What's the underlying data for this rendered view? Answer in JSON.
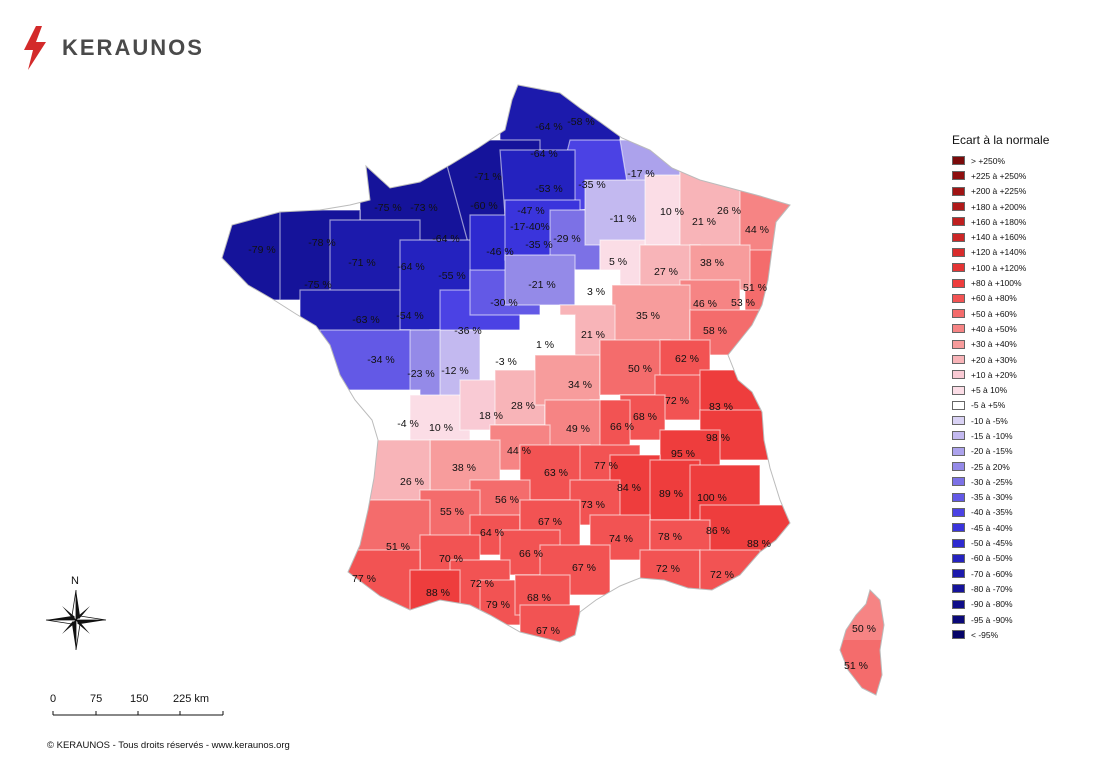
{
  "brand": {
    "name": "KERAUNOS",
    "icon": "lightning-icon",
    "color": "#d32a2a"
  },
  "legend": {
    "title": "Ecart à la normale",
    "items": [
      {
        "label": "> +250%",
        "color": "#7a0a0a"
      },
      {
        "label": "+225 à +250%",
        "color": "#8e0f0f"
      },
      {
        "label": "+200 à +225%",
        "color": "#a01414"
      },
      {
        "label": "+180 à +200%",
        "color": "#b01a1a"
      },
      {
        "label": "+160 à +180%",
        "color": "#bf1f1f"
      },
      {
        "label": "+140 à +160%",
        "color": "#cc2626"
      },
      {
        "label": "+120 à +140%",
        "color": "#d82c2c"
      },
      {
        "label": "+100 à +120%",
        "color": "#e43434"
      },
      {
        "label": "+80 à +100%",
        "color": "#ee3d3d"
      },
      {
        "label": "+60 à +80%",
        "color": "#f25353"
      },
      {
        "label": "+50 à +60%",
        "color": "#f46c6c"
      },
      {
        "label": "+40 à +50%",
        "color": "#f68484"
      },
      {
        "label": "+30 à +40%",
        "color": "#f79c9c"
      },
      {
        "label": "+20 à +30%",
        "color": "#f8b4b8"
      },
      {
        "label": "+10 à +20%",
        "color": "#f9cad4"
      },
      {
        "label": "+5 à 10%",
        "color": "#fbdde6"
      },
      {
        "label": "-5 à +5%",
        "color": "#ffffff"
      },
      {
        "label": "-10 à -5%",
        "color": "#d9d2f4"
      },
      {
        "label": "-15 à -10%",
        "color": "#c3b9f0"
      },
      {
        "label": "-20 à -15%",
        "color": "#aca2ec"
      },
      {
        "label": "-25 à 20%",
        "color": "#948ae8"
      },
      {
        "label": "-30 à -25%",
        "color": "#7c71e6"
      },
      {
        "label": "-35 à -30%",
        "color": "#6359e6"
      },
      {
        "label": "-40 à -35%",
        "color": "#4b42e4"
      },
      {
        "label": "-45 à -40%",
        "color": "#3a34dc"
      },
      {
        "label": "-50 à -45%",
        "color": "#2e2ad0"
      },
      {
        "label": "-60 à -50%",
        "color": "#2422bf"
      },
      {
        "label": "-70 à -60%",
        "color": "#1c1aac"
      },
      {
        "label": "-80 à -70%",
        "color": "#15139a"
      },
      {
        "label": "-90 à -80%",
        "color": "#0f0d88"
      },
      {
        "label": "-95 à -90%",
        "color": "#0a0878"
      },
      {
        "label": "< -95%",
        "color": "#060468"
      }
    ]
  },
  "map_labels": [
    {
      "text": "-64 %",
      "color": "#1c1aac"
    },
    {
      "text": "-58 %",
      "color": "#2422bf"
    },
    {
      "text": "-64 %",
      "color": "#1c1aac"
    },
    {
      "text": "-71 %",
      "color": "#15139a"
    },
    {
      "text": "-53 %",
      "color": "#2422bf"
    },
    {
      "text": "-35 %",
      "color": "#4b42e4"
    },
    {
      "text": "-17 %",
      "color": "#aca2ec"
    },
    {
      "text": "-75 %",
      "color": "#15139a"
    },
    {
      "text": "-73 %",
      "color": "#15139a"
    },
    {
      "text": "-60 %",
      "color": "#2422bf"
    },
    {
      "text": "-47 %",
      "color": "#2e2ad0"
    },
    {
      "text": "-17-40%",
      "color": "#3a34dc"
    },
    {
      "text": "-35 %",
      "color": "#4b42e4"
    },
    {
      "text": "-29 %",
      "color": "#7c71e6"
    },
    {
      "text": "-11 %",
      "color": "#c3b9f0"
    },
    {
      "text": "10 %",
      "color": "#fbdde6"
    },
    {
      "text": "21 %",
      "color": "#f8b4b8"
    },
    {
      "text": "26 %",
      "color": "#f8b4b8"
    },
    {
      "text": "44 %",
      "color": "#f68484"
    },
    {
      "text": "-79 %",
      "color": "#15139a"
    },
    {
      "text": "-78 %",
      "color": "#15139a"
    },
    {
      "text": "-64 %",
      "color": "#1c1aac"
    },
    {
      "text": "-46 %",
      "color": "#2e2ad0"
    },
    {
      "text": "-71 %",
      "color": "#15139a"
    },
    {
      "text": "-64 %",
      "color": "#1c1aac"
    },
    {
      "text": "-55 %",
      "color": "#2422bf"
    },
    {
      "text": "-21 %",
      "color": "#948ae8"
    },
    {
      "text": "5 %",
      "color": "#fbdde6"
    },
    {
      "text": "27 %",
      "color": "#f8b4b8"
    },
    {
      "text": "38 %",
      "color": "#f79c9c"
    },
    {
      "text": "-75 %",
      "color": "#15139a"
    },
    {
      "text": "3 %",
      "color": "#ffffff"
    },
    {
      "text": "51 %",
      "color": "#f46c6c"
    },
    {
      "text": "-30 %",
      "color": "#6359e6"
    },
    {
      "text": "46 %",
      "color": "#f68484"
    },
    {
      "text": "53 %",
      "color": "#f46c6c"
    },
    {
      "text": "-63 %",
      "color": "#1c1aac"
    },
    {
      "text": "-54 %",
      "color": "#2422bf"
    },
    {
      "text": "-36 %",
      "color": "#4b42e4"
    },
    {
      "text": "35 %",
      "color": "#f79c9c"
    },
    {
      "text": "21 %",
      "color": "#f8b4b8"
    },
    {
      "text": "58 %",
      "color": "#f46c6c"
    },
    {
      "text": "1 %",
      "color": "#ffffff"
    },
    {
      "text": "-34 %",
      "color": "#6359e6"
    },
    {
      "text": "-12 %",
      "color": "#c3b9f0"
    },
    {
      "text": "-3 %",
      "color": "#ffffff"
    },
    {
      "text": "62 %",
      "color": "#f25353"
    },
    {
      "text": "-23 %",
      "color": "#948ae8"
    },
    {
      "text": "50 %",
      "color": "#f46c6c"
    },
    {
      "text": "34 %",
      "color": "#f79c9c"
    },
    {
      "text": "72 %",
      "color": "#f25353"
    },
    {
      "text": "83 %",
      "color": "#ee3d3d"
    },
    {
      "text": "28 %",
      "color": "#f8b4b8"
    },
    {
      "text": "18 %",
      "color": "#f9cad4"
    },
    {
      "text": "68 %",
      "color": "#f25353"
    },
    {
      "text": "-4 %",
      "color": "#ffffff"
    },
    {
      "text": "10 %",
      "color": "#fbdde6"
    },
    {
      "text": "49 %",
      "color": "#f68484"
    },
    {
      "text": "66 %",
      "color": "#f25353"
    },
    {
      "text": "98 %",
      "color": "#ee3d3d"
    },
    {
      "text": "44 %",
      "color": "#f68484"
    },
    {
      "text": "95 %",
      "color": "#ee3d3d"
    },
    {
      "text": "38 %",
      "color": "#f79c9c"
    },
    {
      "text": "63 %",
      "color": "#f25353"
    },
    {
      "text": "77 %",
      "color": "#f25353"
    },
    {
      "text": "26 %",
      "color": "#f8b4b8"
    },
    {
      "text": "84 %",
      "color": "#ee3d3d"
    },
    {
      "text": "89 %",
      "color": "#ee3d3d"
    },
    {
      "text": "100 %",
      "color": "#ee3d3d"
    },
    {
      "text": "56 %",
      "color": "#f46c6c"
    },
    {
      "text": "73 %",
      "color": "#f25353"
    },
    {
      "text": "55 %",
      "color": "#f46c6c"
    },
    {
      "text": "64 %",
      "color": "#f25353"
    },
    {
      "text": "67 %",
      "color": "#f25353"
    },
    {
      "text": "86 %",
      "color": "#ee3d3d"
    },
    {
      "text": "51 %",
      "color": "#f46c6c"
    },
    {
      "text": "74 %",
      "color": "#f25353"
    },
    {
      "text": "78 %",
      "color": "#f25353"
    },
    {
      "text": "88 %",
      "color": "#ee3d3d"
    },
    {
      "text": "66 %",
      "color": "#f25353"
    },
    {
      "text": "70 %",
      "color": "#f25353"
    },
    {
      "text": "67 %",
      "color": "#f25353"
    },
    {
      "text": "72 %",
      "color": "#f25353"
    },
    {
      "text": "72 %",
      "color": "#f25353"
    },
    {
      "text": "77 %",
      "color": "#f25353"
    },
    {
      "text": "72 %",
      "color": "#f25353"
    },
    {
      "text": "88 %",
      "color": "#ee3d3d"
    },
    {
      "text": "79 %",
      "color": "#f25353"
    },
    {
      "text": "68 %",
      "color": "#f25353"
    },
    {
      "text": "67 %",
      "color": "#f25353"
    },
    {
      "text": "50 %",
      "color": "#f46c6c"
    },
    {
      "text": "51 %",
      "color": "#f46c6c"
    }
  ],
  "compass": {
    "label": "N",
    "icon": "compass-rose-icon"
  },
  "scale_bar": {
    "ticks": [
      "0",
      "75",
      "150",
      "225 km"
    ]
  },
  "copyright": "© KERAUNOS - Tous droits réservés - www.keraunos.org"
}
